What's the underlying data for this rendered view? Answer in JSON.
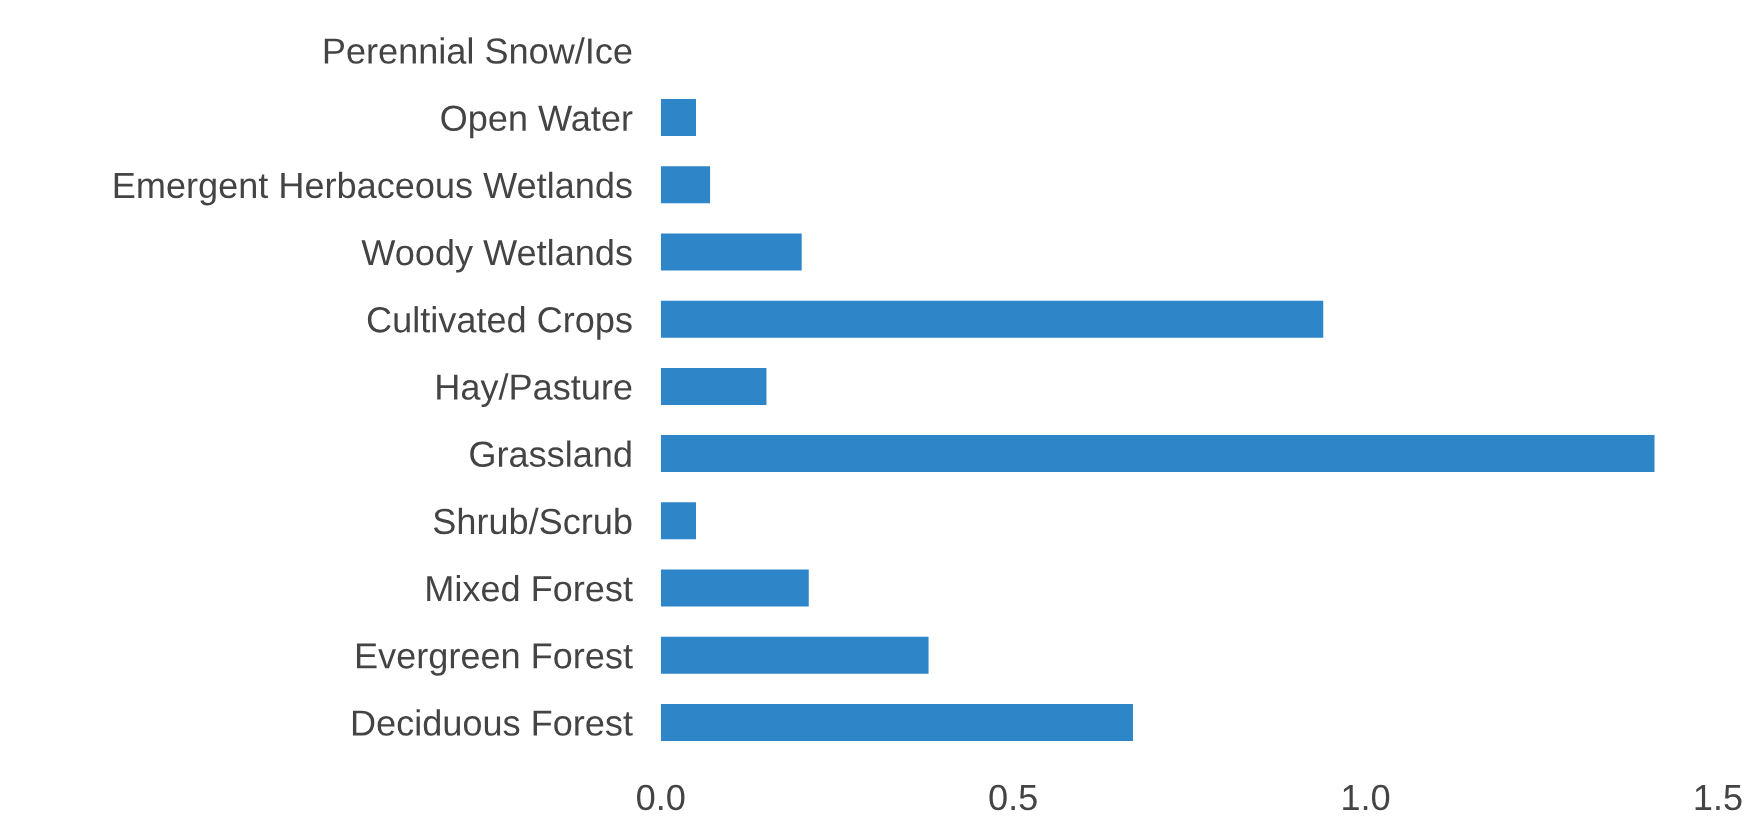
{
  "chart_data": {
    "type": "bar",
    "orientation": "horizontal",
    "categories": [
      "Perennial Snow/Ice",
      "Open Water",
      "Emergent Herbaceous Wetlands",
      "Woody Wetlands",
      "Cultivated Crops",
      "Hay/Pasture",
      "Grassland",
      "Shrub/Scrub",
      "Mixed Forest",
      "Evergreen Forest",
      "Deciduous Forest"
    ],
    "values": [
      0,
      0.05,
      0.07,
      0.2,
      0.94,
      0.15,
      1.41,
      0.05,
      0.21,
      0.38,
      0.67
    ],
    "color": "#2e86c8",
    "xlim": [
      0,
      1.5
    ],
    "xticks": [
      {
        "value": 0,
        "label": "0.0"
      },
      {
        "value": 0.5,
        "label": "0.5"
      },
      {
        "value": 1.0,
        "label": "1.0"
      },
      {
        "value": 1.5,
        "label": "1.5"
      }
    ],
    "grid": false,
    "legend": false
  }
}
